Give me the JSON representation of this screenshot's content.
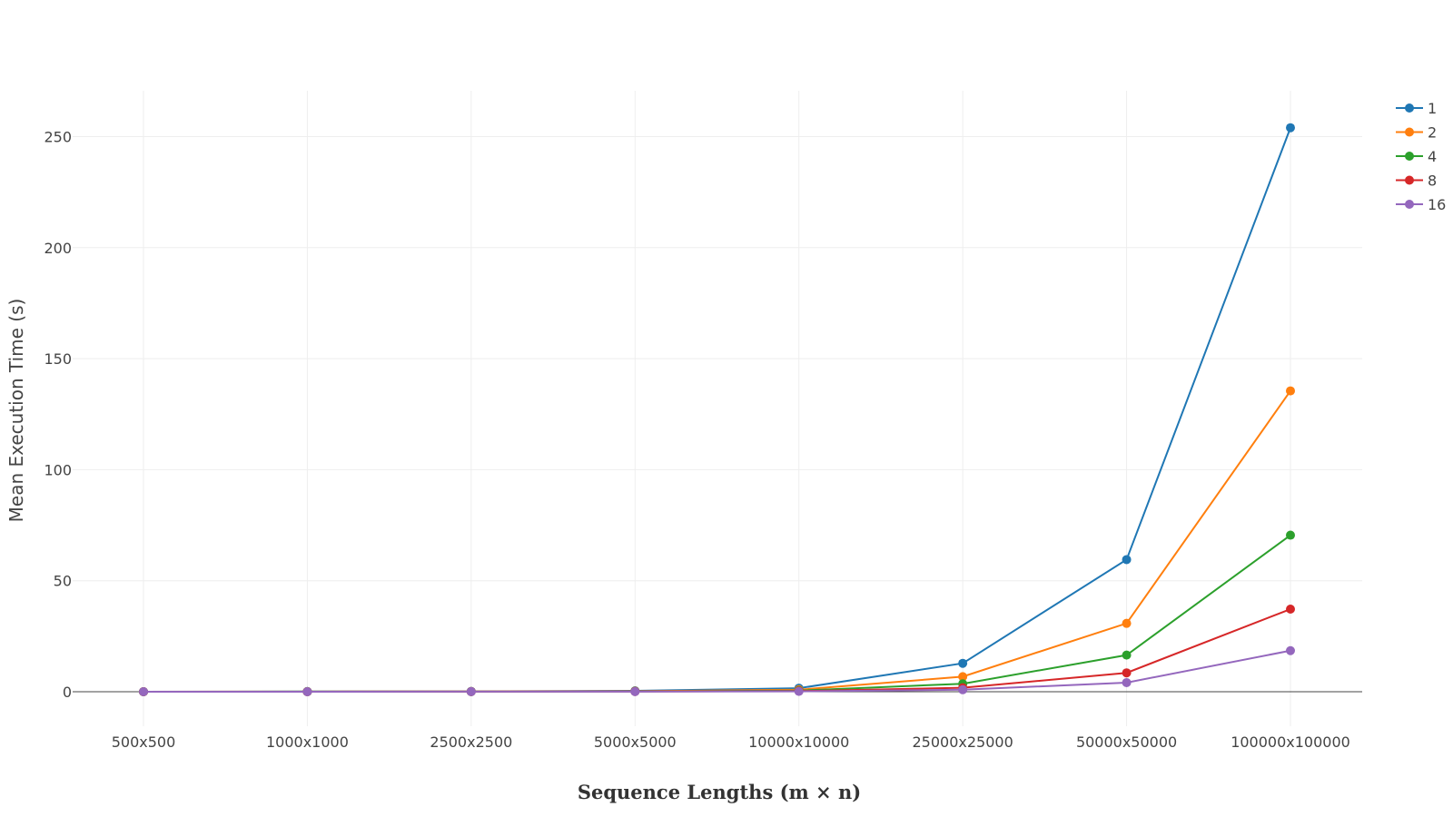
{
  "chart_data": {
    "type": "line",
    "xlabel": "Sequence Lengths (m × n)",
    "ylabel": "Mean Execution Time (s)",
    "categories": [
      "500x500",
      "1000x1000",
      "2500x2500",
      "5000x5000",
      "10000x10000",
      "25000x25000",
      "50000x50000",
      "100000x100000"
    ],
    "yticks": [
      0,
      50,
      100,
      150,
      200,
      250
    ],
    "ylim": [
      -16,
      271
    ],
    "grid": true,
    "legend_position": "top-right",
    "series": [
      {
        "name": "1",
        "color": "#1f77b4",
        "values": [
          0.02,
          0.08,
          0.15,
          0.4,
          1.6,
          12.8,
          59.5,
          254.0
        ]
      },
      {
        "name": "2",
        "color": "#ff7f0e",
        "values": [
          0.01,
          0.05,
          0.1,
          0.25,
          0.9,
          6.8,
          30.8,
          135.5
        ]
      },
      {
        "name": "4",
        "color": "#2ca02c",
        "values": [
          0.01,
          0.03,
          0.07,
          0.15,
          0.5,
          3.6,
          16.5,
          70.5
        ]
      },
      {
        "name": "8",
        "color": "#d62728",
        "values": [
          0.005,
          0.02,
          0.05,
          0.1,
          0.3,
          1.8,
          8.5,
          37.2
        ]
      },
      {
        "name": "16",
        "color": "#9467bd",
        "values": [
          0.003,
          0.01,
          0.03,
          0.05,
          0.15,
          0.9,
          4.1,
          18.5
        ]
      }
    ]
  }
}
